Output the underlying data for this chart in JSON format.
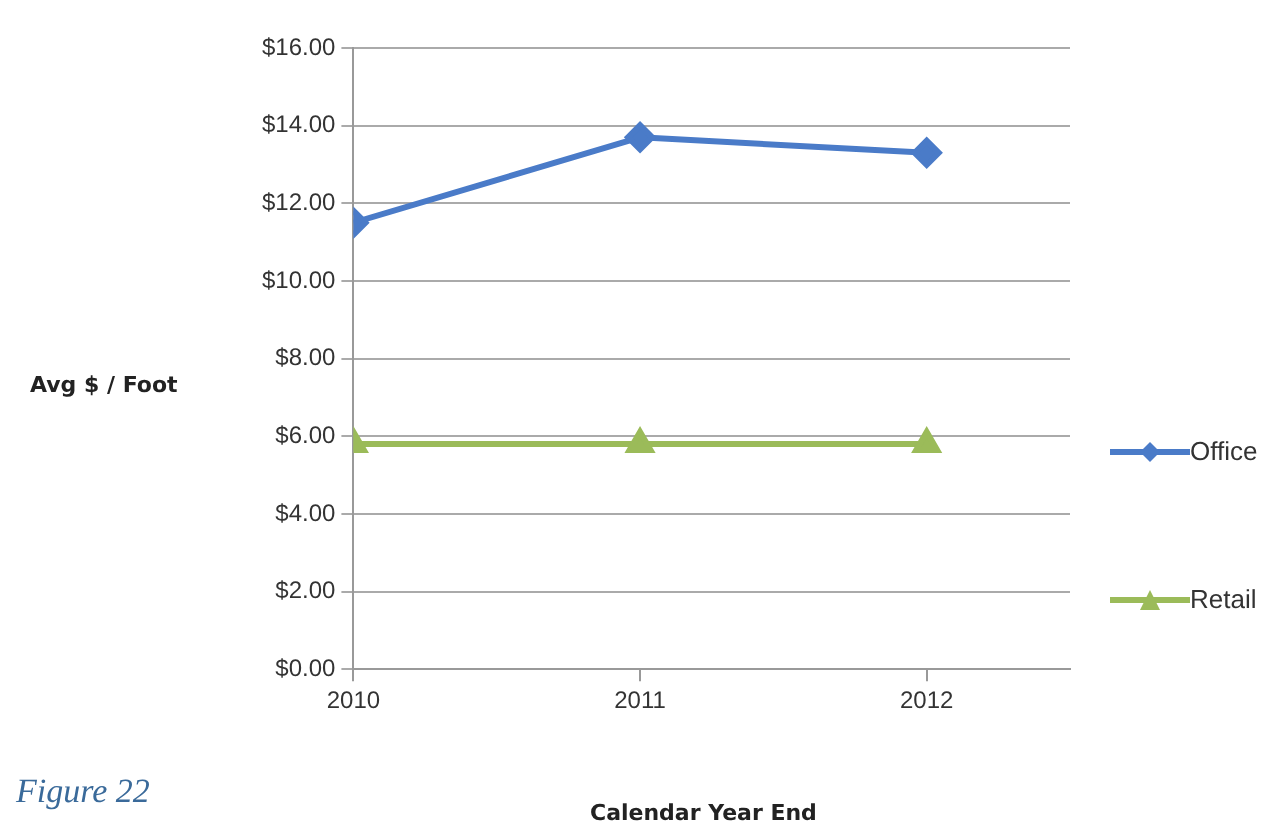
{
  "chart_data": {
    "type": "line",
    "xlabel": "Calendar Year End",
    "ylabel": "Avg $ / Foot",
    "x": [
      2010,
      2011,
      2012
    ],
    "xlim": [
      2010,
      2012.5
    ],
    "xticks": [
      2010,
      2011,
      2012
    ],
    "ylim": [
      0,
      16
    ],
    "yticks": [
      {
        "value": 0,
        "label": "$0.00"
      },
      {
        "value": 2,
        "label": "$2.00"
      },
      {
        "value": 4,
        "label": "$4.00"
      },
      {
        "value": 6,
        "label": "$6.00"
      },
      {
        "value": 8,
        "label": "$8.00"
      },
      {
        "value": 10,
        "label": "$10.00"
      },
      {
        "value": 12,
        "label": "$12.00"
      },
      {
        "value": 14,
        "label": "$14.00"
      },
      {
        "value": 16,
        "label": "$16.00"
      }
    ],
    "series": [
      {
        "name": "Office",
        "color": "#4a7bc8",
        "marker": "diamond",
        "values": [
          11.5,
          13.7,
          13.3
        ]
      },
      {
        "name": "Retail",
        "color": "#9bbb59",
        "marker": "triangle",
        "values": [
          5.8,
          5.8,
          5.8
        ]
      }
    ],
    "grid": "y",
    "legend": "right",
    "annotations": [
      "Figure 22"
    ]
  }
}
